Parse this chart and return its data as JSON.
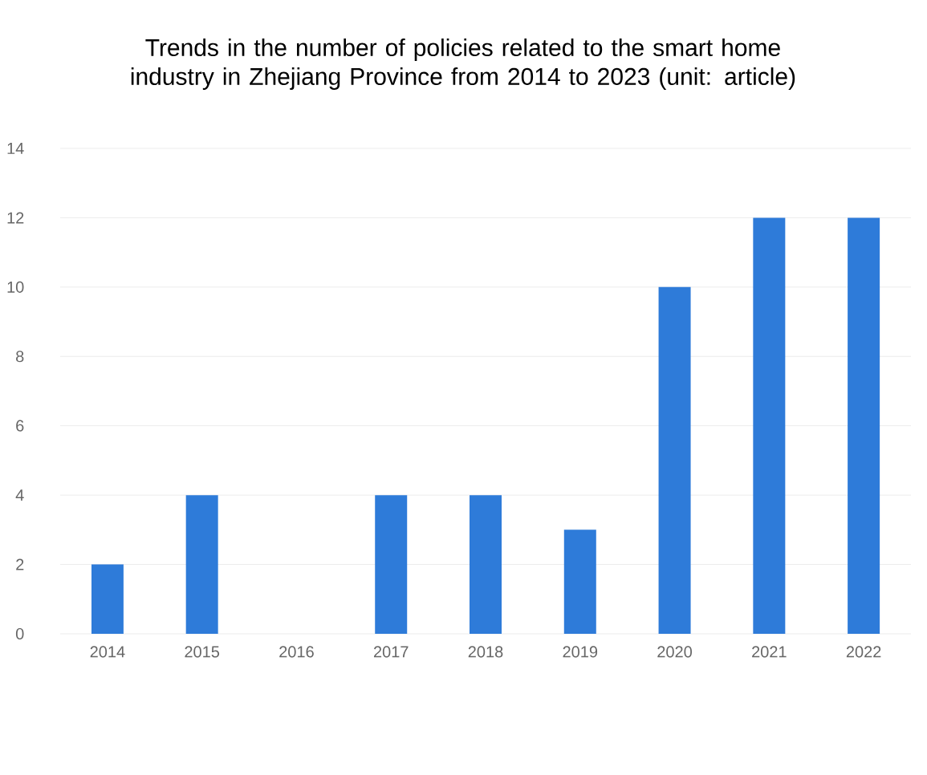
{
  "chart_data": {
    "type": "bar",
    "title": "Trends in the number of policies related to the smart home industry in Zhejiang Province from 2014 to 2023 (unit: article)",
    "categories": [
      "2014",
      "2015",
      "2016",
      "2017",
      "2018",
      "2019",
      "2020",
      "2021",
      "2022"
    ],
    "values": [
      2,
      4,
      0,
      4,
      4,
      3,
      10,
      12,
      12
    ],
    "color": "#2e7bd9",
    "ylim": [
      0,
      14
    ],
    "yticks": [
      0,
      2,
      4,
      6,
      8,
      10,
      12,
      14
    ],
    "grid": "y"
  }
}
